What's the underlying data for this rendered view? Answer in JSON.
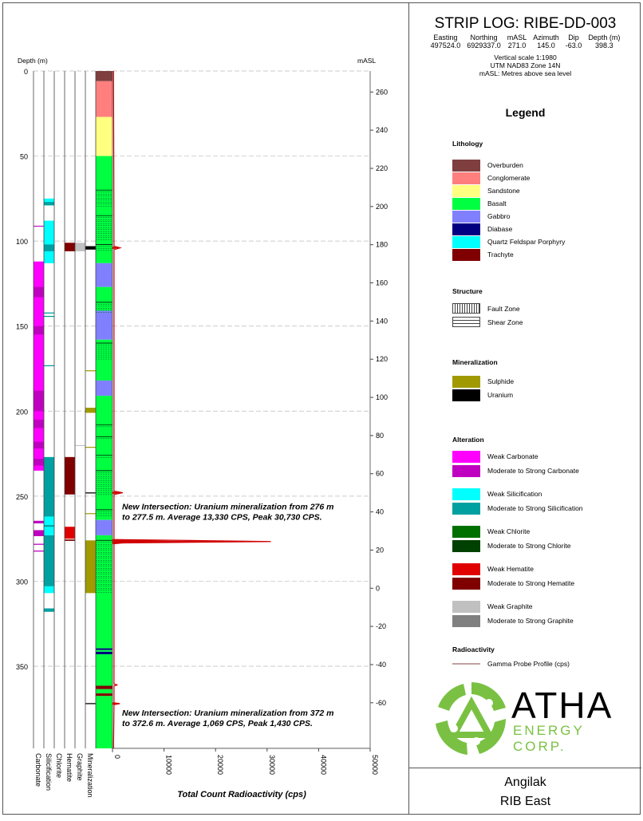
{
  "header": {
    "title": "STRIP LOG: RIBE-DD-003",
    "columns": [
      "Easting",
      "Northing",
      "mASL",
      "Azimuth",
      "Dip",
      "Depth (m)"
    ],
    "values": [
      "497524.0",
      "6929337.0",
      "271.0",
      "145.0",
      "-63.0",
      "398.3"
    ],
    "info": [
      "Vertical scale 1:1980",
      "UTM NAD83 Zone 14N",
      "mASL: Metres above sea level"
    ]
  },
  "legend": {
    "title": "Legend",
    "lithology": {
      "title": "Lithology",
      "items": [
        {
          "label": "Overburden",
          "color": "#7f3f3f"
        },
        {
          "label": "Conglomerate",
          "color": "#ff7f7f"
        },
        {
          "label": "Sandstone",
          "color": "#ffff80"
        },
        {
          "label": "Basalt",
          "color": "#00ff40"
        },
        {
          "label": "Gabbro",
          "color": "#8080ff"
        },
        {
          "label": "Diabase",
          "color": "#000080"
        },
        {
          "label": "Quartz Feldspar Porphyry",
          "color": "#00ffff"
        },
        {
          "label": "Trachyte",
          "color": "#800000"
        }
      ]
    },
    "structure": {
      "title": "Structure",
      "items": [
        {
          "label": "Fault Zone",
          "pattern": "vertical-lines"
        },
        {
          "label": "Shear Zone",
          "pattern": "dashed-horizontal"
        }
      ]
    },
    "mineralization": {
      "title": "Mineralization",
      "items": [
        {
          "label": "Sulphide",
          "color": "#a09a00"
        },
        {
          "label": "Uranium",
          "color": "#000000"
        }
      ]
    },
    "alteration": {
      "title": "Alteration",
      "items": [
        {
          "label": "Weak Carbonate",
          "color": "#ff00ff"
        },
        {
          "label": "Moderate to Strong Carbonate",
          "color": "#c000c0"
        },
        {
          "label": "Weak Silicification",
          "color": "#00ffff"
        },
        {
          "label": "Moderate to Strong Silicification",
          "color": "#00a0a0"
        },
        {
          "label": "Weak Chlorite",
          "color": "#007000"
        },
        {
          "label": "Moderate to Strong Chlorite",
          "color": "#004000"
        },
        {
          "label": "Weak Hematite",
          "color": "#e00000"
        },
        {
          "label": "Moderate to Strong Hematite",
          "color": "#800000"
        },
        {
          "label": "Weak Graphite",
          "color": "#c0c0c0"
        },
        {
          "label": "Moderate to Strong Graphite",
          "color": "#808080"
        }
      ]
    },
    "radioactivity": {
      "title": "Radioactivity",
      "items": [
        {
          "label": "Gamma Probe Profile (cps)",
          "color": "#c0a0a0"
        }
      ]
    }
  },
  "logo": {
    "name": "ATHA",
    "sub": "ENERGY CORP.",
    "color": "#7ac143"
  },
  "footer": {
    "project": "Angilak",
    "area": "RIB East"
  },
  "chart_data": {
    "type": "strip-log",
    "depth_label": "Depth (m)",
    "masl_label": "mASL",
    "xlabel": "Total Count Radioactivity (cps)",
    "depth_range": [
      0,
      398.3
    ],
    "depth_ticks": [
      0,
      50,
      100,
      150,
      200,
      250,
      300,
      350
    ],
    "masl_ticks": [
      260,
      240,
      220,
      200,
      180,
      160,
      140,
      120,
      100,
      80,
      60,
      40,
      20,
      0,
      -20,
      -40,
      -60
    ],
    "x_range": [
      0,
      50000
    ],
    "x_ticks": [
      "0",
      "10000",
      "20000",
      "30000",
      "40000",
      "50000"
    ],
    "track_labels": [
      "Carbonate",
      "Silicification",
      "Chlorite",
      "Hematite",
      "Graphite",
      "Mineralization"
    ],
    "lithology": [
      {
        "from": 0,
        "to": 6,
        "rock": "Overburden"
      },
      {
        "from": 6,
        "to": 27,
        "rock": "Conglomerate"
      },
      {
        "from": 27,
        "to": 50,
        "rock": "Sandstone"
      },
      {
        "from": 50,
        "to": 113,
        "rock": "Basalt"
      },
      {
        "from": 113,
        "to": 127,
        "rock": "Gabbro"
      },
      {
        "from": 127,
        "to": 141,
        "rock": "Basalt"
      },
      {
        "from": 141,
        "to": 158,
        "rock": "Gabbro"
      },
      {
        "from": 158,
        "to": 182,
        "rock": "Basalt"
      },
      {
        "from": 182,
        "to": 191,
        "rock": "Gabbro"
      },
      {
        "from": 191,
        "to": 264,
        "rock": "Basalt"
      },
      {
        "from": 264,
        "to": 273,
        "rock": "Gabbro"
      },
      {
        "from": 273,
        "to": 339.5,
        "rock": "Basalt"
      },
      {
        "from": 339.5,
        "to": 340.5,
        "rock": "Diabase"
      },
      {
        "from": 340.5,
        "to": 341.5,
        "rock": "Basalt"
      },
      {
        "from": 341.5,
        "to": 343,
        "rock": "Diabase"
      },
      {
        "from": 343,
        "to": 361.5,
        "rock": "Basalt"
      },
      {
        "from": 361.5,
        "to": 363.5,
        "rock": "Trachyte"
      },
      {
        "from": 363.5,
        "to": 366,
        "rock": "Basalt"
      },
      {
        "from": 366,
        "to": 367.5,
        "rock": "Trachyte"
      },
      {
        "from": 367.5,
        "to": 398.3,
        "rock": "Basalt"
      }
    ],
    "shear_zones": [
      [
        70,
        80
      ],
      [
        85,
        100
      ],
      [
        102,
        106
      ],
      [
        136,
        142
      ],
      [
        160,
        170
      ],
      [
        208,
        210
      ],
      [
        215,
        217
      ],
      [
        226,
        228
      ],
      [
        235,
        250
      ],
      [
        258,
        262
      ],
      [
        276,
        307
      ]
    ],
    "carbonate": [
      {
        "from": 91,
        "to": 91.5,
        "level": "moderate"
      },
      {
        "from": 112,
        "to": 235,
        "level": "weak"
      },
      {
        "from": 127,
        "to": 133,
        "level": "moderate"
      },
      {
        "from": 150,
        "to": 155,
        "level": "moderate"
      },
      {
        "from": 188,
        "to": 200,
        "level": "moderate"
      },
      {
        "from": 205,
        "to": 210,
        "level": "moderate"
      },
      {
        "from": 218,
        "to": 222,
        "level": "moderate"
      },
      {
        "from": 228,
        "to": 232,
        "level": "moderate"
      },
      {
        "from": 264.5,
        "to": 266,
        "level": "moderate"
      },
      {
        "from": 270,
        "to": 273.5,
        "level": "moderate"
      },
      {
        "from": 278,
        "to": 278.6,
        "level": "moderate"
      },
      {
        "from": 282,
        "to": 282.6,
        "level": "moderate"
      }
    ],
    "silicification": [
      {
        "from": 75,
        "to": 79,
        "level": "weak"
      },
      {
        "from": 77,
        "to": 79,
        "level": "moderate"
      },
      {
        "from": 88,
        "to": 113,
        "level": "weak"
      },
      {
        "from": 102,
        "to": 106,
        "level": "moderate"
      },
      {
        "from": 142,
        "to": 142.6,
        "level": "moderate"
      },
      {
        "from": 144,
        "to": 144.6,
        "level": "moderate"
      },
      {
        "from": 173,
        "to": 173.6,
        "level": "moderate"
      },
      {
        "from": 227,
        "to": 262,
        "level": "moderate"
      },
      {
        "from": 262,
        "to": 273,
        "level": "weak"
      },
      {
        "from": 267,
        "to": 268,
        "level": "moderate"
      },
      {
        "from": 273,
        "to": 303,
        "level": "moderate"
      },
      {
        "from": 303,
        "to": 307,
        "level": "weak"
      },
      {
        "from": 316,
        "to": 318,
        "level": "moderate"
      }
    ],
    "chlorite": [],
    "hematite": [
      {
        "from": 101,
        "to": 106,
        "level": "moderate"
      },
      {
        "from": 227,
        "to": 249,
        "level": "moderate"
      },
      {
        "from": 268,
        "to": 275,
        "level": "weak"
      },
      {
        "from": 275.5,
        "to": 276.3,
        "level": "moderate"
      }
    ],
    "graphite": [
      {
        "from": 101,
        "to": 106,
        "level": "weak"
      },
      {
        "from": 220,
        "to": 220.5,
        "level": "weak"
      }
    ],
    "mineralization": [
      {
        "from": 103,
        "to": 105,
        "type": "Uranium"
      },
      {
        "from": 176,
        "to": 176.5,
        "type": "Sulphide"
      },
      {
        "from": 198,
        "to": 201,
        "type": "Sulphide"
      },
      {
        "from": 221,
        "to": 221.5,
        "type": "Sulphide"
      },
      {
        "from": 247.8,
        "to": 248.4,
        "type": "Uranium"
      },
      {
        "from": 260,
        "to": 260.5,
        "type": "Sulphide"
      },
      {
        "from": 276,
        "to": 307,
        "type": "Sulphide"
      },
      {
        "from": 371.7,
        "to": 372.3,
        "type": "Uranium"
      }
    ],
    "gamma": [
      {
        "depth": 0,
        "cps": 200
      },
      {
        "depth": 103,
        "cps": 300
      },
      {
        "depth": 104,
        "cps": 1500
      },
      {
        "depth": 105,
        "cps": 300
      },
      {
        "depth": 247,
        "cps": 300
      },
      {
        "depth": 248,
        "cps": 2000
      },
      {
        "depth": 249,
        "cps": 300
      },
      {
        "depth": 275.5,
        "cps": 300
      },
      {
        "depth": 276,
        "cps": 13330
      },
      {
        "depth": 276.7,
        "cps": 30730
      },
      {
        "depth": 277.5,
        "cps": 2000
      },
      {
        "depth": 278,
        "cps": 300
      },
      {
        "depth": 360.5,
        "cps": 300
      },
      {
        "depth": 361,
        "cps": 1000
      },
      {
        "depth": 361.5,
        "cps": 300
      },
      {
        "depth": 371.5,
        "cps": 300
      },
      {
        "depth": 372,
        "cps": 1430
      },
      {
        "depth": 372.6,
        "cps": 300
      },
      {
        "depth": 398.3,
        "cps": 200
      }
    ],
    "annotations": [
      {
        "depth": 276,
        "text1": "New Intersection: Uranium mineralization from 276 m",
        "text2": "to 277.5 m. Average 13,330 CPS, Peak 30,730 CPS."
      },
      {
        "depth": 372,
        "text1": "New Intersection: Uranium mineralization from 372 m",
        "text2": "to 372.6 m. Average 1,069 CPS, Peak 1,430 CPS."
      }
    ]
  }
}
